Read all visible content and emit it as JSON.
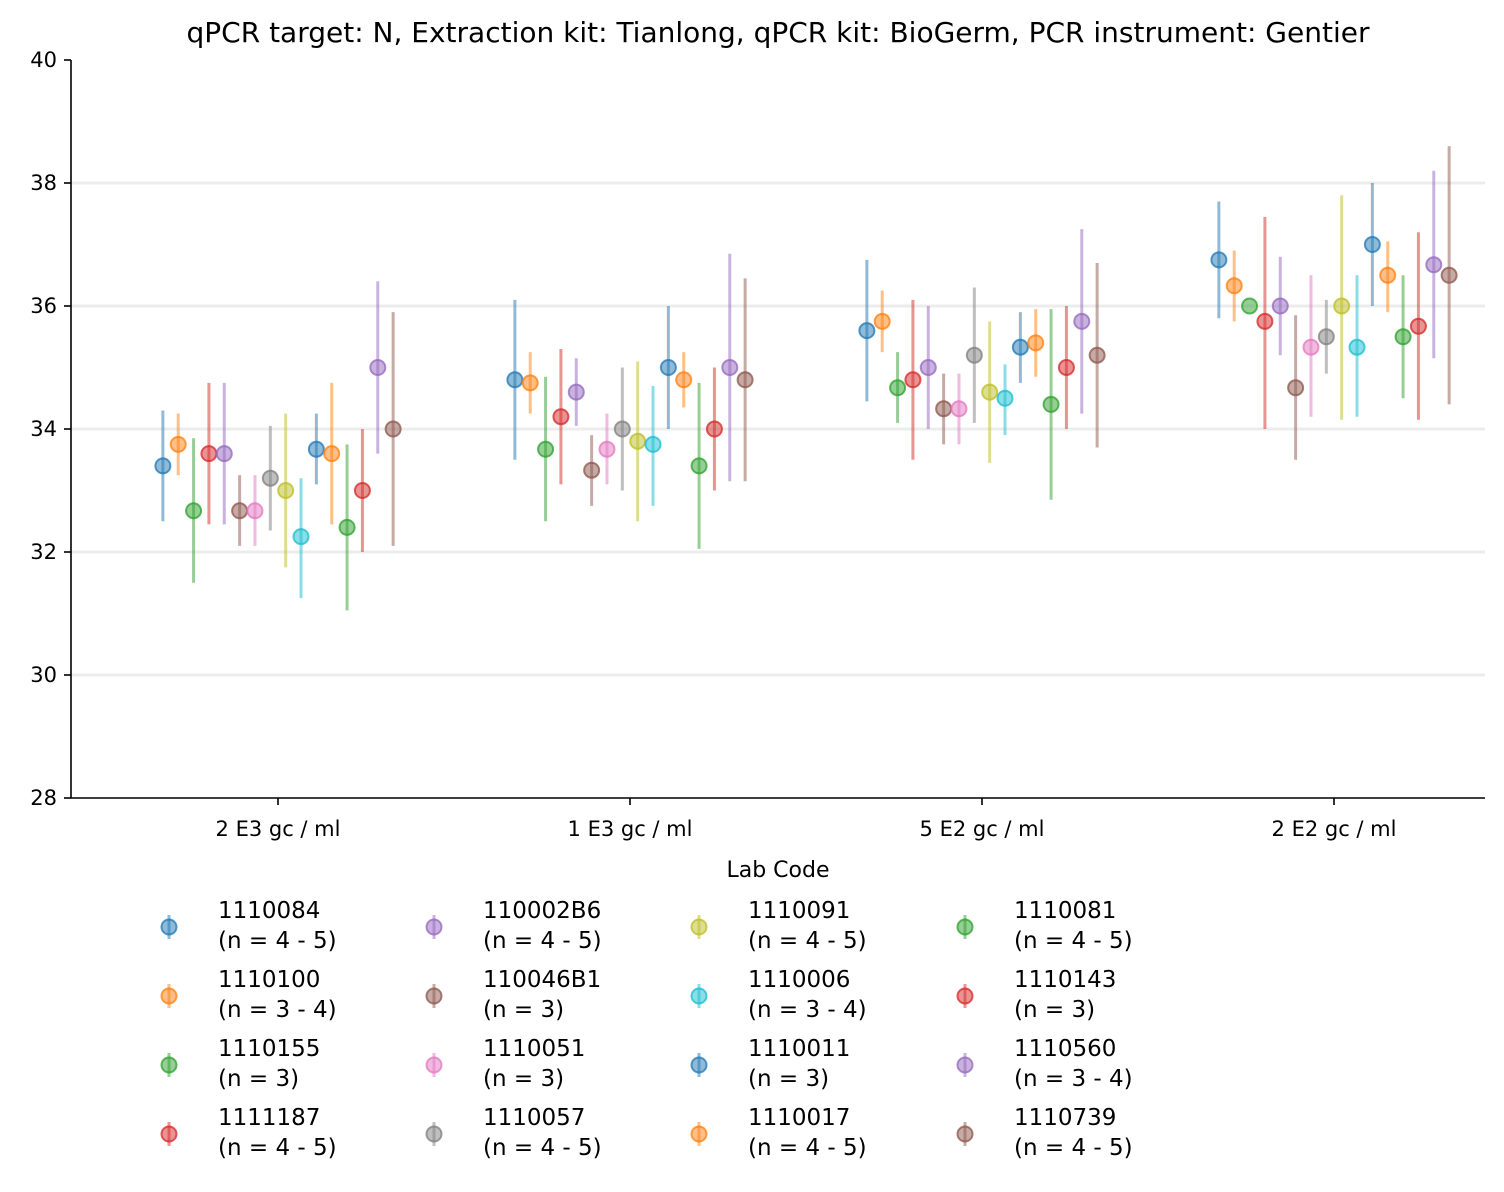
{
  "chart_data": {
    "type": "scatter",
    "title": "qPCR target: N, Extraction kit: Tianlong, qPCR kit: BioGerm, PCR instrument: Gentier",
    "xlabel": "",
    "ylabel": "",
    "ylim": [
      28,
      40
    ],
    "yticks": [
      28,
      30,
      32,
      34,
      36,
      38,
      40
    ],
    "categories": [
      "2 E3 gc / ml",
      "1 E3 gc / ml",
      "5 E2 gc / ml",
      "2 E2 gc / ml"
    ],
    "grid": "horizontal",
    "legend": {
      "title": "Lab Code",
      "placement": "bottom",
      "columns": 5
    },
    "series": [
      {
        "name": "1110084",
        "n": "(n = 4 - 5)",
        "color": "#1f77b4",
        "values": [
          33.4,
          34.8,
          35.6,
          36.75
        ],
        "lower": [
          32.5,
          33.5,
          34.45,
          35.8
        ],
        "upper": [
          34.3,
          36.1,
          36.75,
          37.7
        ]
      },
      {
        "name": "1110100",
        "n": "(n = 3 - 4)",
        "color": "#ff7f0e",
        "values": [
          33.75,
          34.75,
          35.75,
          36.33
        ],
        "lower": [
          33.25,
          34.25,
          35.25,
          35.75
        ],
        "upper": [
          34.25,
          35.25,
          36.25,
          36.9
        ]
      },
      {
        "name": "1110155",
        "n": "(n = 3)",
        "color": "#2ca02c",
        "values": [
          32.67,
          33.67,
          34.67,
          36.0
        ],
        "lower": [
          31.5,
          32.5,
          34.1,
          36.0
        ],
        "upper": [
          33.85,
          34.85,
          35.25,
          36.0
        ]
      },
      {
        "name": "1111187",
        "n": "(n = 4 - 5)",
        "color": "#d62728",
        "values": [
          33.6,
          34.2,
          34.8,
          35.75
        ],
        "lower": [
          32.45,
          33.1,
          33.5,
          34.0
        ],
        "upper": [
          34.75,
          35.3,
          36.1,
          37.45
        ]
      },
      {
        "name": "110002B6",
        "n": "(n = 4 - 5)",
        "color": "#9467bd",
        "values": [
          33.6,
          34.6,
          35.0,
          36.0
        ],
        "lower": [
          32.45,
          34.05,
          34.0,
          35.2
        ],
        "upper": [
          34.75,
          35.15,
          36.0,
          36.8
        ]
      },
      {
        "name": "110046B1",
        "n": "(n = 3)",
        "color": "#8c564b",
        "values": [
          32.67,
          33.33,
          34.33,
          34.67
        ],
        "lower": [
          32.1,
          32.75,
          33.75,
          33.5
        ],
        "upper": [
          33.25,
          33.9,
          34.9,
          35.85
        ]
      },
      {
        "name": "1110051",
        "n": "(n = 3)",
        "color": "#e377c2",
        "values": [
          32.67,
          33.67,
          34.33,
          35.33
        ],
        "lower": [
          32.1,
          33.1,
          33.75,
          34.2
        ],
        "upper": [
          33.25,
          34.25,
          34.9,
          36.5
        ]
      },
      {
        "name": "1110057",
        "n": "(n = 4 - 5)",
        "color": "#7f7f7f",
        "values": [
          33.2,
          34.0,
          35.2,
          35.5
        ],
        "lower": [
          32.35,
          33.0,
          34.1,
          34.9
        ],
        "upper": [
          34.05,
          35.0,
          36.3,
          36.1
        ]
      },
      {
        "name": "1110091",
        "n": "(n = 4 - 5)",
        "color": "#bcbd22",
        "values": [
          33.0,
          33.8,
          34.6,
          36.0
        ],
        "lower": [
          31.75,
          32.5,
          33.45,
          34.15
        ],
        "upper": [
          34.25,
          35.1,
          35.75,
          37.8
        ]
      },
      {
        "name": "1110006",
        "n": "(n = 3 - 4)",
        "color": "#17becf",
        "values": [
          32.25,
          33.75,
          34.5,
          35.33
        ],
        "lower": [
          31.25,
          32.75,
          33.9,
          34.2
        ],
        "upper": [
          33.2,
          34.7,
          35.05,
          36.5
        ]
      },
      {
        "name": "1110011",
        "n": "(n = 3)",
        "color": "#1f77b4",
        "values": [
          33.67,
          35.0,
          35.33,
          37.0
        ],
        "lower": [
          33.1,
          34.0,
          34.75,
          36.0
        ],
        "upper": [
          34.25,
          36.0,
          35.9,
          38.0
        ]
      },
      {
        "name": "1110017",
        "n": "(n = 4 - 5)",
        "color": "#ff7f0e",
        "values": [
          33.6,
          34.8,
          35.4,
          36.5
        ],
        "lower": [
          32.45,
          34.35,
          34.85,
          35.9
        ],
        "upper": [
          34.75,
          35.25,
          35.95,
          37.05
        ]
      },
      {
        "name": "1110081",
        "n": "(n = 4 - 5)",
        "color": "#2ca02c",
        "values": [
          32.4,
          33.4,
          34.4,
          35.5
        ],
        "lower": [
          31.05,
          32.05,
          32.85,
          34.5
        ],
        "upper": [
          33.75,
          34.75,
          35.95,
          36.5
        ]
      },
      {
        "name": "1110143",
        "n": "(n = 3)",
        "color": "#d62728",
        "values": [
          33.0,
          34.0,
          35.0,
          35.67
        ],
        "lower": [
          32.0,
          33.0,
          34.0,
          34.15
        ],
        "upper": [
          34.0,
          35.0,
          36.0,
          37.2
        ]
      },
      {
        "name": "1110560",
        "n": "(n = 3 - 4)",
        "color": "#9467bd",
        "values": [
          35.0,
          35.0,
          35.75,
          36.67
        ],
        "lower": [
          33.6,
          33.15,
          34.25,
          35.15
        ],
        "upper": [
          36.4,
          36.85,
          37.25,
          38.2
        ]
      },
      {
        "name": "1110739",
        "n": "(n = 4 - 5)",
        "color": "#8c564b",
        "values": [
          34.0,
          34.8,
          35.2,
          36.5
        ],
        "lower": [
          32.1,
          33.15,
          33.7,
          34.4
        ],
        "upper": [
          35.9,
          36.45,
          36.7,
          38.6
        ]
      }
    ]
  }
}
